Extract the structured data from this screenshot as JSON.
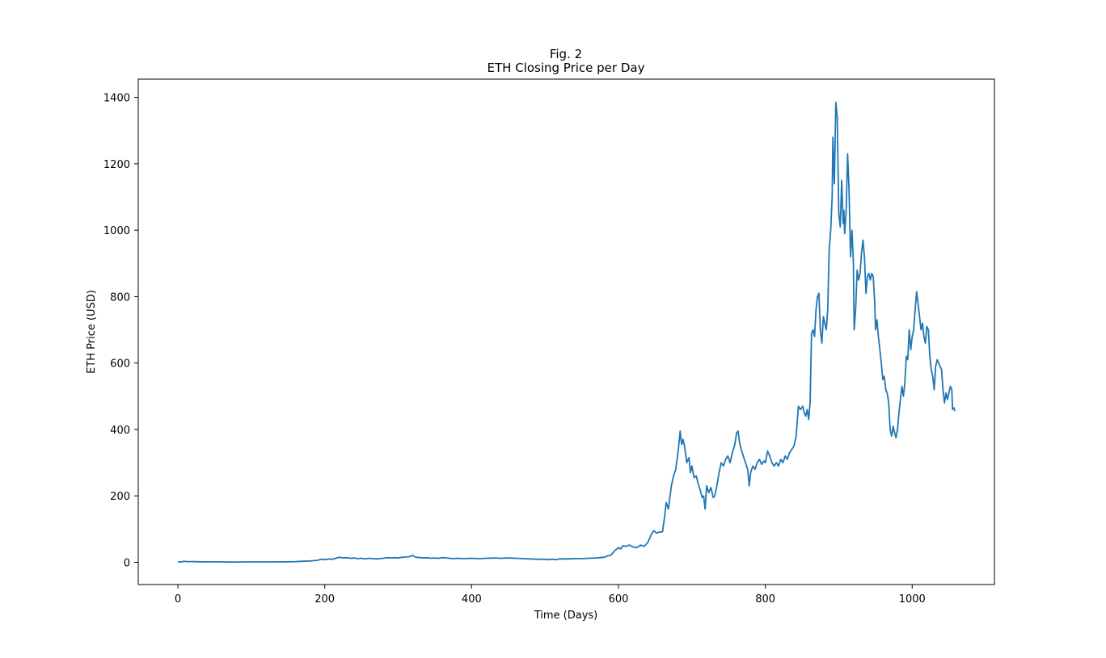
{
  "chart_data": {
    "type": "line",
    "title": "Fig. 2",
    "subtitle": "ETH Closing Price per Day",
    "xlabel": "Time (Days)",
    "ylabel": "ETH Price (USD)",
    "xlim": [
      -54,
      1112
    ],
    "ylim": [
      -67,
      1455
    ],
    "xticks": [
      0,
      200,
      400,
      600,
      800,
      1000
    ],
    "yticks": [
      0,
      200,
      400,
      600,
      800,
      1000,
      1200,
      1400
    ],
    "grid": false,
    "legend": "none",
    "series": [
      {
        "color": "#1f77b4",
        "points": [
          [
            0,
            1
          ],
          [
            5,
            1
          ],
          [
            8,
            3
          ],
          [
            12,
            2
          ],
          [
            20,
            2
          ],
          [
            30,
            1.5
          ],
          [
            40,
            1.3
          ],
          [
            50,
            1.2
          ],
          [
            60,
            1
          ],
          [
            70,
            0.8
          ],
          [
            80,
            0.8
          ],
          [
            90,
            1
          ],
          [
            100,
            1
          ],
          [
            110,
            1
          ],
          [
            120,
            1
          ],
          [
            130,
            1
          ],
          [
            140,
            1.2
          ],
          [
            150,
            1.5
          ],
          [
            160,
            2
          ],
          [
            170,
            3
          ],
          [
            180,
            4
          ],
          [
            190,
            6
          ],
          [
            195,
            9
          ],
          [
            200,
            8
          ],
          [
            205,
            10
          ],
          [
            210,
            9
          ],
          [
            215,
            12
          ],
          [
            220,
            15
          ],
          [
            225,
            13
          ],
          [
            230,
            14
          ],
          [
            235,
            12
          ],
          [
            240,
            13
          ],
          [
            245,
            11
          ],
          [
            250,
            12
          ],
          [
            255,
            10
          ],
          [
            260,
            12
          ],
          [
            265,
            11
          ],
          [
            270,
            10
          ],
          [
            275,
            11
          ],
          [
            280,
            12
          ],
          [
            285,
            14
          ],
          [
            290,
            13
          ],
          [
            295,
            14
          ],
          [
            300,
            13
          ],
          [
            305,
            15
          ],
          [
            310,
            16
          ],
          [
            315,
            17
          ],
          [
            320,
            21
          ],
          [
            322,
            17
          ],
          [
            325,
            15
          ],
          [
            330,
            14
          ],
          [
            335,
            13
          ],
          [
            340,
            14
          ],
          [
            345,
            12
          ],
          [
            350,
            13
          ],
          [
            355,
            12
          ],
          [
            360,
            14
          ],
          [
            365,
            13
          ],
          [
            370,
            12
          ],
          [
            375,
            11
          ],
          [
            380,
            12
          ],
          [
            390,
            11
          ],
          [
            400,
            12
          ],
          [
            410,
            11
          ],
          [
            420,
            12
          ],
          [
            430,
            13
          ],
          [
            440,
            12
          ],
          [
            450,
            13
          ],
          [
            460,
            12
          ],
          [
            470,
            11
          ],
          [
            480,
            10
          ],
          [
            490,
            9
          ],
          [
            500,
            9
          ],
          [
            505,
            8
          ],
          [
            510,
            9
          ],
          [
            515,
            8
          ],
          [
            520,
            10
          ],
          [
            530,
            10
          ],
          [
            540,
            11
          ],
          [
            550,
            11
          ],
          [
            560,
            12
          ],
          [
            570,
            13
          ],
          [
            575,
            14
          ],
          [
            580,
            15
          ],
          [
            585,
            19
          ],
          [
            590,
            22
          ],
          [
            595,
            35
          ],
          [
            600,
            44
          ],
          [
            603,
            40
          ],
          [
            606,
            50
          ],
          [
            610,
            48
          ],
          [
            615,
            52
          ],
          [
            620,
            46
          ],
          [
            625,
            44
          ],
          [
            630,
            52
          ],
          [
            635,
            48
          ],
          [
            640,
            60
          ],
          [
            645,
            85
          ],
          [
            648,
            95
          ],
          [
            652,
            88
          ],
          [
            655,
            90
          ],
          [
            660,
            92
          ],
          [
            663,
            140
          ],
          [
            665,
            180
          ],
          [
            668,
            160
          ],
          [
            672,
            230
          ],
          [
            675,
            260
          ],
          [
            678,
            280
          ],
          [
            681,
            330
          ],
          [
            684,
            395
          ],
          [
            686,
            355
          ],
          [
            688,
            370
          ],
          [
            690,
            350
          ],
          [
            693,
            300
          ],
          [
            696,
            315
          ],
          [
            698,
            270
          ],
          [
            700,
            290
          ],
          [
            703,
            255
          ],
          [
            706,
            260
          ],
          [
            708,
            240
          ],
          [
            711,
            220
          ],
          [
            714,
            195
          ],
          [
            716,
            200
          ],
          [
            718,
            160
          ],
          [
            720,
            230
          ],
          [
            723,
            210
          ],
          [
            726,
            225
          ],
          [
            729,
            195
          ],
          [
            731,
            200
          ],
          [
            734,
            230
          ],
          [
            737,
            270
          ],
          [
            740,
            300
          ],
          [
            743,
            290
          ],
          [
            746,
            310
          ],
          [
            749,
            320
          ],
          [
            752,
            300
          ],
          [
            755,
            330
          ],
          [
            758,
            350
          ],
          [
            761,
            390
          ],
          [
            763,
            395
          ],
          [
            765,
            360
          ],
          [
            767,
            340
          ],
          [
            770,
            320
          ],
          [
            773,
            300
          ],
          [
            776,
            280
          ],
          [
            778,
            230
          ],
          [
            780,
            270
          ],
          [
            783,
            290
          ],
          [
            786,
            280
          ],
          [
            789,
            300
          ],
          [
            792,
            310
          ],
          [
            795,
            295
          ],
          [
            798,
            305
          ],
          [
            800,
            300
          ],
          [
            803,
            335
          ],
          [
            806,
            320
          ],
          [
            809,
            300
          ],
          [
            812,
            290
          ],
          [
            815,
            300
          ],
          [
            818,
            290
          ],
          [
            821,
            310
          ],
          [
            824,
            300
          ],
          [
            827,
            320
          ],
          [
            830,
            310
          ],
          [
            833,
            330
          ],
          [
            836,
            340
          ],
          [
            839,
            350
          ],
          [
            842,
            380
          ],
          [
            845,
            470
          ],
          [
            848,
            460
          ],
          [
            851,
            470
          ],
          [
            853,
            450
          ],
          [
            855,
            440
          ],
          [
            857,
            460
          ],
          [
            859,
            430
          ],
          [
            861,
            480
          ],
          [
            863,
            690
          ],
          [
            865,
            700
          ],
          [
            867,
            680
          ],
          [
            869,
            760
          ],
          [
            871,
            800
          ],
          [
            873,
            810
          ],
          [
            875,
            700
          ],
          [
            877,
            660
          ],
          [
            879,
            740
          ],
          [
            881,
            720
          ],
          [
            883,
            700
          ],
          [
            885,
            760
          ],
          [
            887,
            940
          ],
          [
            889,
            1000
          ],
          [
            891,
            1100
          ],
          [
            892,
            1280
          ],
          [
            893,
            1200
          ],
          [
            894,
            1140
          ],
          [
            896,
            1385
          ],
          [
            898,
            1340
          ],
          [
            900,
            1050
          ],
          [
            902,
            1010
          ],
          [
            904,
            1150
          ],
          [
            906,
            1020
          ],
          [
            907,
            1060
          ],
          [
            908,
            990
          ],
          [
            910,
            1050
          ],
          [
            912,
            1230
          ],
          [
            914,
            1120
          ],
          [
            916,
            920
          ],
          [
            918,
            1000
          ],
          [
            920,
            900
          ],
          [
            921,
            700
          ],
          [
            923,
            760
          ],
          [
            925,
            880
          ],
          [
            927,
            850
          ],
          [
            929,
            870
          ],
          [
            931,
            930
          ],
          [
            933,
            970
          ],
          [
            935,
            920
          ],
          [
            937,
            810
          ],
          [
            939,
            860
          ],
          [
            941,
            870
          ],
          [
            943,
            850
          ],
          [
            945,
            870
          ],
          [
            947,
            860
          ],
          [
            949,
            780
          ],
          [
            950,
            700
          ],
          [
            952,
            730
          ],
          [
            954,
            680
          ],
          [
            956,
            640
          ],
          [
            958,
            600
          ],
          [
            960,
            550
          ],
          [
            962,
            560
          ],
          [
            964,
            520
          ],
          [
            966,
            510
          ],
          [
            968,
            480
          ],
          [
            970,
            400
          ],
          [
            972,
            380
          ],
          [
            974,
            410
          ],
          [
            976,
            390
          ],
          [
            978,
            375
          ],
          [
            980,
            400
          ],
          [
            982,
            450
          ],
          [
            984,
            490
          ],
          [
            986,
            530
          ],
          [
            988,
            500
          ],
          [
            990,
            540
          ],
          [
            992,
            620
          ],
          [
            994,
            610
          ],
          [
            996,
            700
          ],
          [
            998,
            640
          ],
          [
            1000,
            680
          ],
          [
            1002,
            700
          ],
          [
            1004,
            760
          ],
          [
            1006,
            815
          ],
          [
            1008,
            780
          ],
          [
            1010,
            740
          ],
          [
            1012,
            700
          ],
          [
            1014,
            720
          ],
          [
            1016,
            680
          ],
          [
            1018,
            660
          ],
          [
            1020,
            710
          ],
          [
            1022,
            700
          ],
          [
            1024,
            620
          ],
          [
            1026,
            580
          ],
          [
            1028,
            560
          ],
          [
            1030,
            520
          ],
          [
            1032,
            590
          ],
          [
            1034,
            610
          ],
          [
            1036,
            600
          ],
          [
            1038,
            590
          ],
          [
            1040,
            580
          ],
          [
            1042,
            520
          ],
          [
            1044,
            480
          ],
          [
            1046,
            510
          ],
          [
            1048,
            490
          ],
          [
            1050,
            510
          ],
          [
            1052,
            530
          ],
          [
            1054,
            520
          ],
          [
            1055,
            460
          ],
          [
            1057,
            465
          ],
          [
            1058,
            455
          ]
        ]
      }
    ]
  }
}
